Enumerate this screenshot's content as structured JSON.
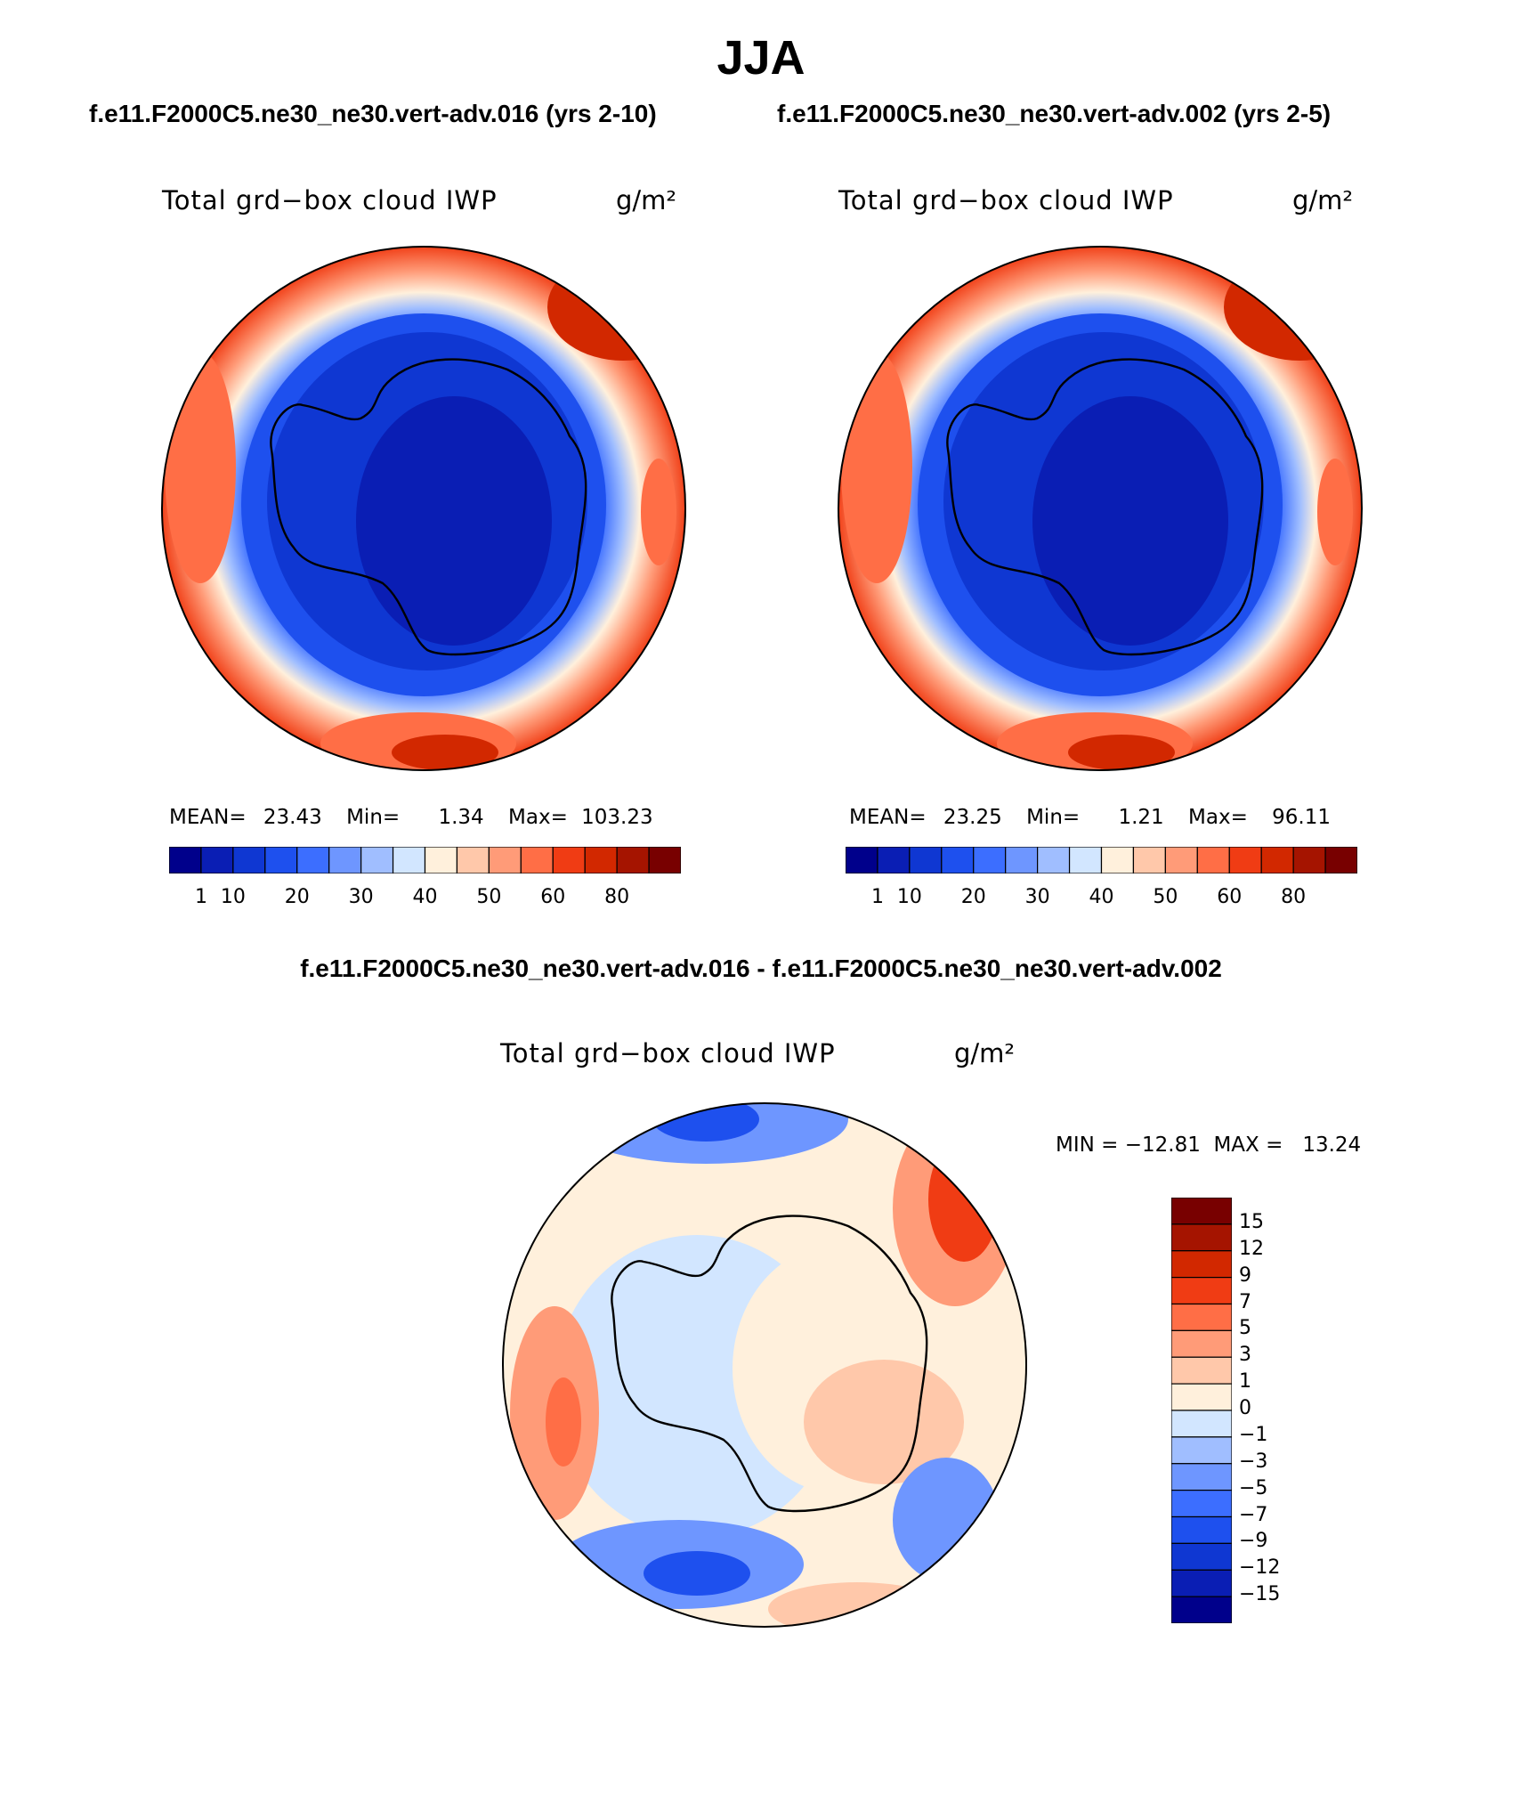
{
  "main_title": "JJA",
  "panels": [
    {
      "case_title": "f.e11.F2000C5.ne30_ne30.vert-adv.016 (yrs 2-10)",
      "variable": "Total grd−box cloud IWP",
      "units": "g/m²",
      "stats": {
        "mean_label": "MEAN=",
        "mean": "23.43",
        "min_label": "Min=",
        "min": "1.34",
        "max_label": "Max=",
        "max": "103.23"
      }
    },
    {
      "case_title": "f.e11.F2000C5.ne30_ne30.vert-adv.002 (yrs 2-5)",
      "variable": "Total grd−box cloud IWP",
      "units": "g/m²",
      "stats": {
        "mean_label": "MEAN=",
        "mean": "23.25",
        "min_label": "Min=",
        "min": "1.21",
        "max_label": "Max=",
        "max": "96.11"
      }
    }
  ],
  "diff_panel": {
    "title": "f.e11.F2000C5.ne30_ne30.vert-adv.016 - f.e11.F2000C5.ne30_ne30.vert-adv.002",
    "variable": "Total grd−box cloud IWP",
    "units": "g/m²",
    "minmax": "MIN = −12.81  MAX =   13.24"
  },
  "colors": {
    "field_scale": [
      "#00008b",
      "#0a1eb4",
      "#0f37d2",
      "#1e50ee",
      "#3c6eff",
      "#6e96ff",
      "#a0beff",
      "#d2e6ff",
      "#fff0dc",
      "#ffc8aa",
      "#ff9b78",
      "#ff6e46",
      "#f03c14",
      "#d22800",
      "#a51400",
      "#780000"
    ],
    "diff_scale": [
      "#00008b",
      "#0a1eb4",
      "#0f37d2",
      "#1e50ee",
      "#3c6eff",
      "#6e96ff",
      "#a0beff",
      "#d2e6ff",
      "#fff0dc",
      "#ffc8aa",
      "#ff9b78",
      "#ff6e46",
      "#f03c14",
      "#d22800",
      "#a51400",
      "#780000"
    ]
  },
  "chart_data": [
    {
      "type": "heatmap",
      "projection": "south polar stereographic",
      "contour_levels": [
        1,
        5,
        10,
        15,
        20,
        25,
        30,
        35,
        40,
        45,
        50,
        55,
        60,
        70,
        80
      ],
      "colorbar_tick_labels": [
        "1",
        "10",
        "20",
        "30",
        "40",
        "50",
        "60",
        "80"
      ]
    },
    {
      "type": "heatmap",
      "projection": "south polar stereographic",
      "contour_levels": [
        1,
        5,
        10,
        15,
        20,
        25,
        30,
        35,
        40,
        45,
        50,
        55,
        60,
        70,
        80
      ],
      "colorbar_tick_labels": [
        "1",
        "10",
        "20",
        "30",
        "40",
        "50",
        "60",
        "80"
      ]
    },
    {
      "type": "heatmap",
      "projection": "south polar stereographic",
      "contour_levels": [
        -15,
        -12,
        -9,
        -7,
        -5,
        -3,
        -1,
        0,
        1,
        3,
        5,
        7,
        9,
        12,
        15
      ],
      "colorbar_tick_labels": [
        "15",
        "12",
        "9",
        "7",
        "5",
        "3",
        "1",
        "0",
        "−1",
        "−3",
        "−5",
        "−7",
        "−9",
        "−12",
        "−15"
      ]
    }
  ]
}
